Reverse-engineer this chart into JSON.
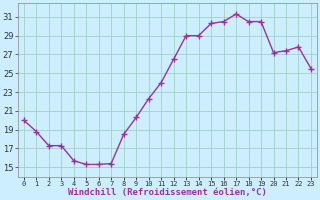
{
  "x": [
    0,
    1,
    2,
    3,
    4,
    5,
    6,
    7,
    8,
    9,
    10,
    11,
    12,
    13,
    14,
    15,
    16,
    17,
    18,
    19,
    20,
    21,
    22,
    23
  ],
  "y": [
    20.0,
    18.8,
    17.3,
    17.3,
    15.7,
    15.3,
    15.3,
    15.4,
    18.5,
    20.3,
    22.3,
    24.0,
    26.5,
    29.0,
    29.0,
    30.3,
    30.5,
    31.3,
    30.5,
    30.5,
    27.2,
    27.4,
    27.8,
    25.5
  ],
  "line_color": "#993399",
  "marker": "+",
  "markersize": 4,
  "linewidth": 1.0,
  "bg_color": "#cceeff",
  "grid_color": "#99ccbb",
  "xlabel": "Windchill (Refroidissement éolien,°C)",
  "xlabel_color": "#993399",
  "ylabel_ticks": [
    15,
    17,
    19,
    21,
    23,
    25,
    27,
    29,
    31
  ],
  "xtick_labels": [
    "0",
    "1",
    "2",
    "3",
    "4",
    "5",
    "6",
    "7",
    "8",
    "9",
    "10",
    "11",
    "12",
    "13",
    "14",
    "15",
    "16",
    "17",
    "18",
    "19",
    "20",
    "21",
    "22",
    "23"
  ],
  "ylim": [
    14.0,
    32.5
  ],
  "xlim": [
    -0.5,
    23.5
  ]
}
